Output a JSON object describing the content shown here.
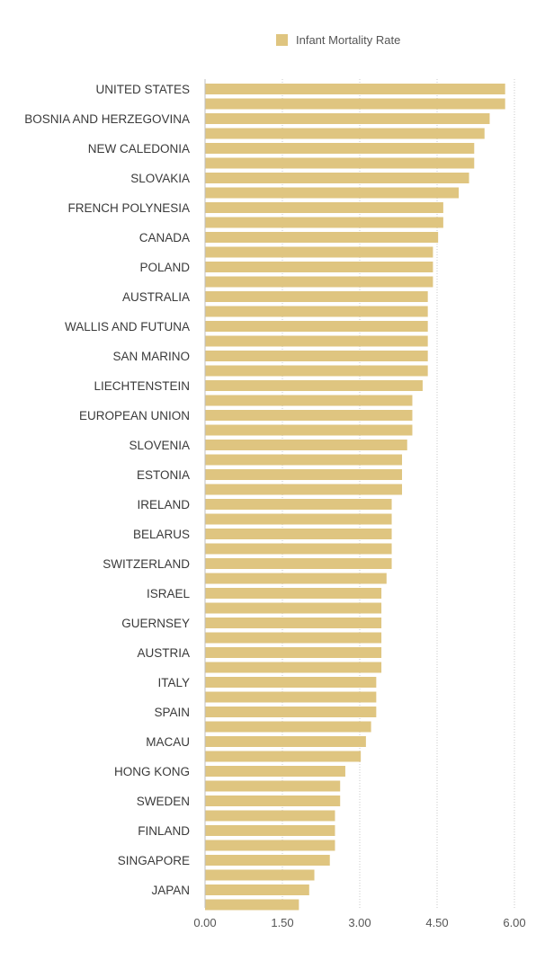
{
  "chart_data": {
    "type": "bar",
    "orientation": "horizontal",
    "legend": {
      "position": "top-center",
      "entries": [
        {
          "label": "Infant Mortality Rate",
          "color": "#dfc580"
        }
      ]
    },
    "series": [
      {
        "name": "Infant Mortality Rate",
        "color": "#dfc580",
        "values": [
          5.82,
          5.82,
          5.52,
          5.42,
          5.22,
          5.22,
          5.12,
          4.92,
          4.62,
          4.62,
          4.52,
          4.42,
          4.42,
          4.42,
          4.32,
          4.32,
          4.32,
          4.32,
          4.32,
          4.32,
          4.22,
          4.02,
          4.02,
          4.02,
          3.92,
          3.82,
          3.82,
          3.82,
          3.62,
          3.62,
          3.62,
          3.62,
          3.62,
          3.52,
          3.42,
          3.42,
          3.42,
          3.42,
          3.42,
          3.42,
          3.32,
          3.32,
          3.32,
          3.22,
          3.12,
          3.02,
          2.72,
          2.62,
          2.62,
          2.52,
          2.52,
          2.52,
          2.42,
          2.12,
          2.02,
          1.82
        ]
      }
    ],
    "category_labels": [
      {
        "row": 0,
        "text": "UNITED STATES"
      },
      {
        "row": 2,
        "text": "BOSNIA AND HERZEGOVINA"
      },
      {
        "row": 4,
        "text": "NEW CALEDONIA"
      },
      {
        "row": 6,
        "text": "SLOVAKIA"
      },
      {
        "row": 8,
        "text": "FRENCH POLYNESIA"
      },
      {
        "row": 10,
        "text": "CANADA"
      },
      {
        "row": 12,
        "text": "POLAND"
      },
      {
        "row": 14,
        "text": "AUSTRALIA"
      },
      {
        "row": 16,
        "text": "WALLIS AND FUTUNA"
      },
      {
        "row": 18,
        "text": "SAN MARINO"
      },
      {
        "row": 20,
        "text": "LIECHTENSTEIN"
      },
      {
        "row": 22,
        "text": "EUROPEAN UNION"
      },
      {
        "row": 24,
        "text": "SLOVENIA"
      },
      {
        "row": 26,
        "text": "ESTONIA"
      },
      {
        "row": 28,
        "text": "IRELAND"
      },
      {
        "row": 30,
        "text": "BELARUS"
      },
      {
        "row": 32,
        "text": "SWITZERLAND"
      },
      {
        "row": 34,
        "text": "ISRAEL"
      },
      {
        "row": 36,
        "text": "GUERNSEY"
      },
      {
        "row": 38,
        "text": "AUSTRIA"
      },
      {
        "row": 40,
        "text": "ITALY"
      },
      {
        "row": 42,
        "text": "SPAIN"
      },
      {
        "row": 44,
        "text": "MACAU"
      },
      {
        "row": 46,
        "text": "HONG KONG"
      },
      {
        "row": 48,
        "text": "SWEDEN"
      },
      {
        "row": 50,
        "text": "FINLAND"
      },
      {
        "row": 52,
        "text": "SINGAPORE"
      },
      {
        "row": 54,
        "text": "JAPAN"
      }
    ],
    "x_axis": {
      "min": 0,
      "max": 6,
      "ticks": [
        {
          "value": 0,
          "label": "0.00"
        },
        {
          "value": 1.5,
          "label": "1.50"
        },
        {
          "value": 3,
          "label": "3.00"
        },
        {
          "value": 4.5,
          "label": "4.50"
        },
        {
          "value": 6,
          "label": "6.00"
        }
      ]
    },
    "grid": true,
    "title": "",
    "xlabel": "",
    "ylabel": ""
  }
}
